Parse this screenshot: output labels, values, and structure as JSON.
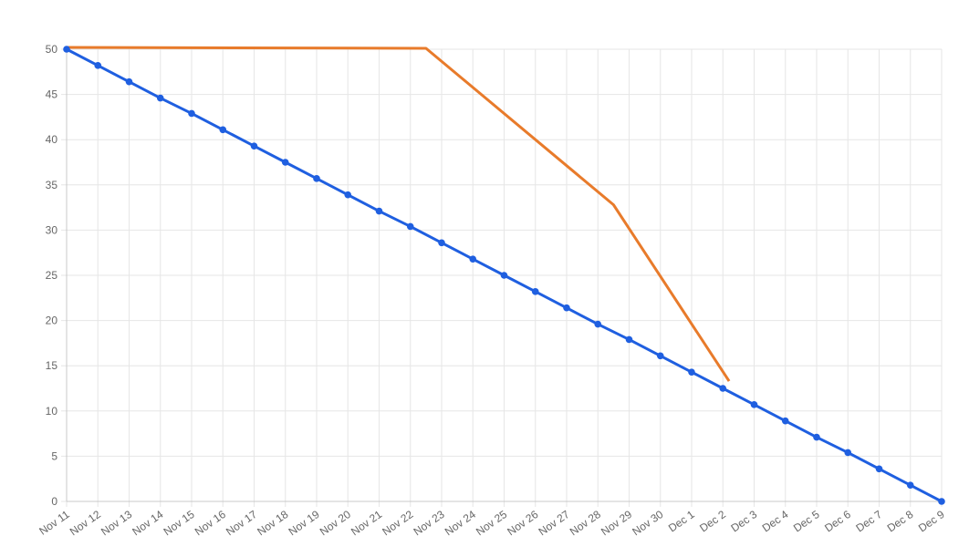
{
  "chart_data": {
    "type": "line",
    "categories": [
      "Nov 11",
      "Nov 12",
      "Nov 13",
      "Nov 14",
      "Nov 15",
      "Nov 16",
      "Nov 17",
      "Nov 18",
      "Nov 19",
      "Nov 20",
      "Nov 21",
      "Nov 22",
      "Nov 23",
      "Nov 24",
      "Nov 25",
      "Nov 26",
      "Nov 27",
      "Nov 28",
      "Nov 29",
      "Nov 30",
      "Dec 1",
      "Dec 2",
      "Dec 3",
      "Dec 4",
      "Dec 5",
      "Dec 6",
      "Dec 7",
      "Dec 8",
      "Dec 9"
    ],
    "ylim": [
      0,
      50
    ],
    "yticks": [
      0,
      5,
      10,
      15,
      20,
      25,
      30,
      35,
      40,
      45,
      50
    ],
    "grid": true,
    "series": [
      {
        "color": "#1f5fe0",
        "markers": true,
        "points": [
          {
            "x": 0,
            "y": 50
          },
          {
            "x": 1,
            "y": 48.2
          },
          {
            "x": 2,
            "y": 46.4
          },
          {
            "x": 3,
            "y": 44.6
          },
          {
            "x": 4,
            "y": 42.9
          },
          {
            "x": 5,
            "y": 41.1
          },
          {
            "x": 6,
            "y": 39.3
          },
          {
            "x": 7,
            "y": 37.5
          },
          {
            "x": 8,
            "y": 35.7
          },
          {
            "x": 9,
            "y": 33.9
          },
          {
            "x": 10,
            "y": 32.1
          },
          {
            "x": 11,
            "y": 30.4
          },
          {
            "x": 12,
            "y": 28.6
          },
          {
            "x": 13,
            "y": 26.8
          },
          {
            "x": 14,
            "y": 25.0
          },
          {
            "x": 15,
            "y": 23.2
          },
          {
            "x": 16,
            "y": 21.4
          },
          {
            "x": 17,
            "y": 19.6
          },
          {
            "x": 18,
            "y": 17.9
          },
          {
            "x": 19,
            "y": 16.1
          },
          {
            "x": 20,
            "y": 14.3
          },
          {
            "x": 21,
            "y": 12.5
          },
          {
            "x": 22,
            "y": 10.7
          },
          {
            "x": 23,
            "y": 8.9
          },
          {
            "x": 24,
            "y": 7.1
          },
          {
            "x": 25,
            "y": 5.4
          },
          {
            "x": 26,
            "y": 3.6
          },
          {
            "x": 27,
            "y": 1.8
          },
          {
            "x": 28,
            "y": 0
          }
        ]
      },
      {
        "color": "#e87b2b",
        "markers": false,
        "points": [
          {
            "x": 0,
            "y": 50.2
          },
          {
            "x": 11.5,
            "y": 50.1
          },
          {
            "x": 17.5,
            "y": 32.8
          },
          {
            "x": 21.2,
            "y": 13.3
          }
        ]
      }
    ]
  }
}
